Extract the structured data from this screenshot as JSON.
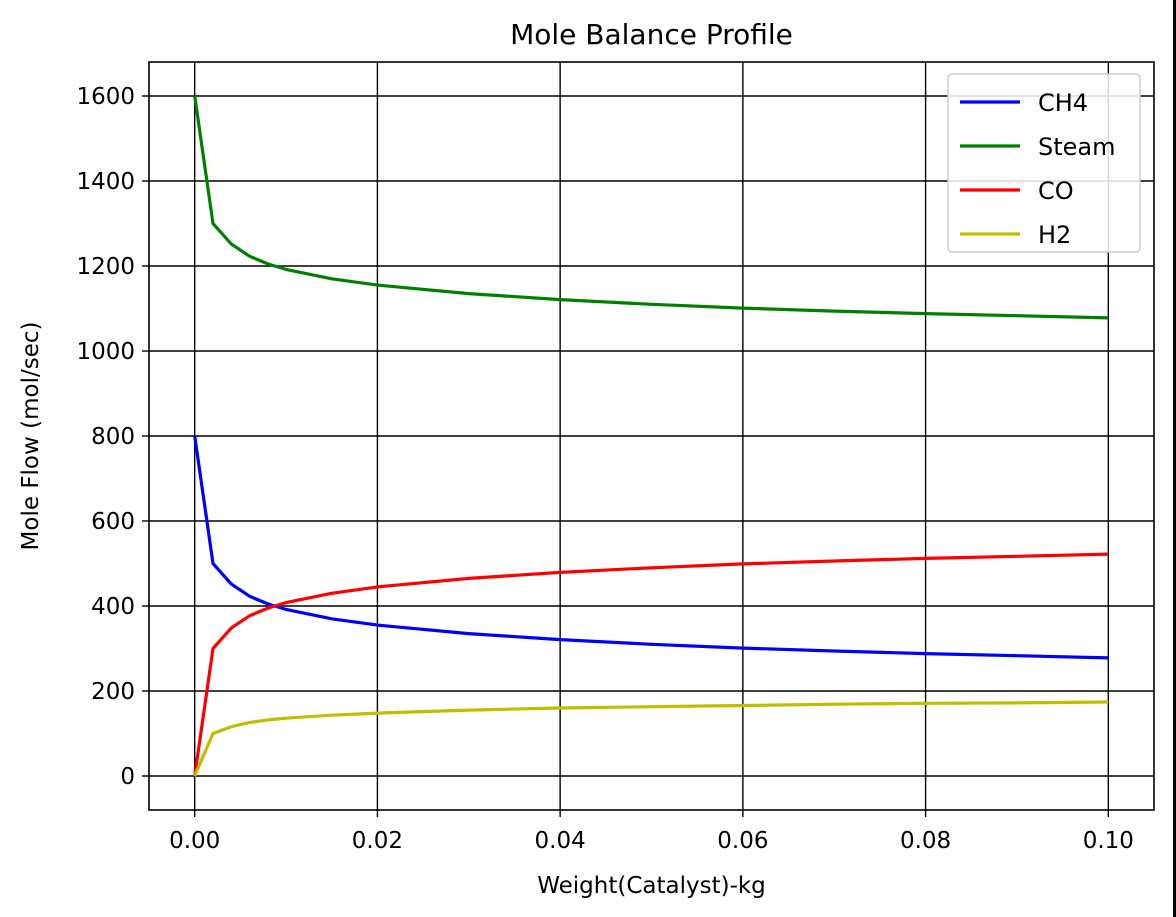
{
  "chart_data": {
    "type": "line",
    "title": "Mole Balance Profile",
    "xlabel": "Weight(Catalyst)-kg",
    "ylabel": "Mole Flow (mol/sec)",
    "xlim": [
      -0.005,
      0.105
    ],
    "ylim": [
      -80,
      1680
    ],
    "grid": true,
    "legend_position": "top-right",
    "x_ticks": [
      0.0,
      0.02,
      0.04,
      0.06,
      0.08,
      0.1
    ],
    "x_tick_labels": [
      "0.00",
      "0.02",
      "0.04",
      "0.06",
      "0.08",
      "0.10"
    ],
    "y_ticks": [
      0,
      200,
      400,
      600,
      800,
      1000,
      1200,
      1400,
      1600
    ],
    "y_tick_labels": [
      "0",
      "200",
      "400",
      "600",
      "800",
      "1000",
      "1200",
      "1400",
      "1600"
    ],
    "x": [
      0.0,
      0.002,
      0.004,
      0.006,
      0.008,
      0.01,
      0.015,
      0.02,
      0.03,
      0.04,
      0.05,
      0.06,
      0.07,
      0.08,
      0.09,
      0.1
    ],
    "series": [
      {
        "name": "CH4",
        "color": "#0000ff",
        "values": [
          800,
          500,
          452,
          423,
          405,
          392,
          370,
          355,
          335,
          321,
          310,
          301,
          294,
          288,
          283,
          278
        ]
      },
      {
        "name": "Steam",
        "color": "#008000",
        "values": [
          1600,
          1300,
          1252,
          1223,
          1205,
          1192,
          1170,
          1155,
          1135,
          1121,
          1110,
          1101,
          1094,
          1088,
          1083,
          1078
        ]
      },
      {
        "name": "CO",
        "color": "#ff0000",
        "values": [
          0,
          300,
          348,
          377,
          395,
          408,
          430,
          445,
          465,
          479,
          490,
          499,
          506,
          512,
          517,
          522
        ]
      },
      {
        "name": "H2",
        "color": "#bfbf00",
        "values": [
          0,
          100,
          116,
          126,
          132,
          136,
          143,
          148,
          155,
          160,
          163,
          166,
          169,
          171,
          172,
          174
        ]
      }
    ]
  }
}
